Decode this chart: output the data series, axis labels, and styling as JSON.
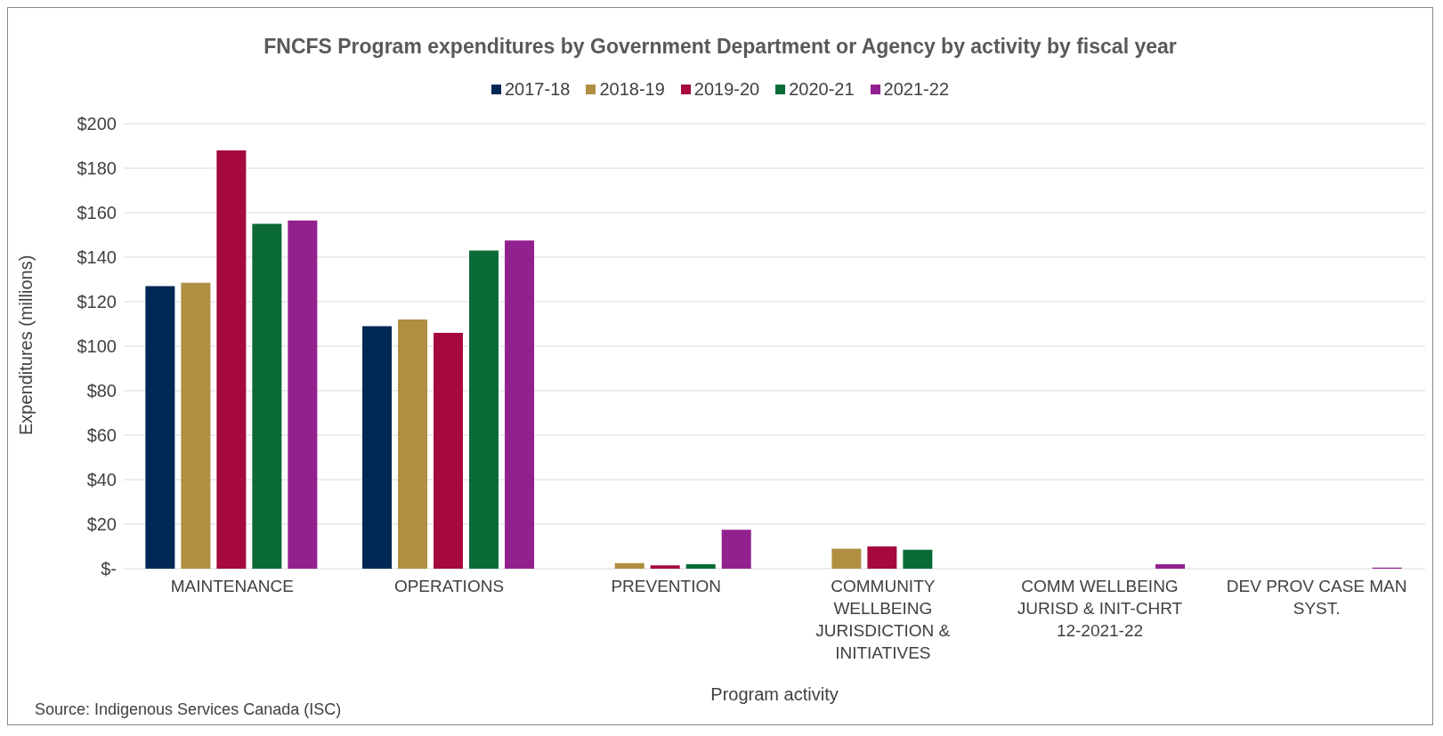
{
  "chart_data": {
    "type": "bar",
    "title": "FNCFS Program expenditures by Government Department or Agency by activity by fiscal year",
    "xlabel": "Program activity",
    "ylabel": "Expenditures (millions)",
    "categories": [
      "MAINTENANCE",
      "OPERATIONS",
      "PREVENTION",
      "COMMUNITY WELLBEING JURISDICTION & INITIATIVES",
      "COMM WELLBEING JURISD & INIT-CHRT 12-2021-22",
      "DEV PROV CASE MAN SYST."
    ],
    "series": [
      {
        "name": "2017-18",
        "color": "#002855",
        "values": [
          127,
          109,
          null,
          null,
          null,
          null
        ]
      },
      {
        "name": "2018-19",
        "color": "#b08f42",
        "values": [
          128.5,
          112,
          2.5,
          9,
          null,
          null
        ]
      },
      {
        "name": "2019-20",
        "color": "#a6093d",
        "values": [
          188,
          106,
          1.5,
          10,
          null,
          null
        ]
      },
      {
        "name": "2020-21",
        "color": "#0a6b38",
        "values": [
          155,
          143,
          2,
          8.5,
          null,
          null
        ]
      },
      {
        "name": "2021-22",
        "color": "#93208f",
        "values": [
          156.5,
          147.5,
          17.5,
          null,
          2,
          0.5
        ]
      }
    ],
    "ylim": [
      0,
      200
    ],
    "yticks": [
      {
        "value": 0,
        "label": "$-"
      },
      {
        "value": 20,
        "label": "$20"
      },
      {
        "value": 40,
        "label": "$40"
      },
      {
        "value": 60,
        "label": "$60"
      },
      {
        "value": 80,
        "label": "$80"
      },
      {
        "value": 100,
        "label": "$100"
      },
      {
        "value": 120,
        "label": "$120"
      },
      {
        "value": 140,
        "label": "$140"
      },
      {
        "value": 160,
        "label": "$160"
      },
      {
        "value": 180,
        "label": "$180"
      },
      {
        "value": 200,
        "label": "$200"
      }
    ],
    "grid": "y",
    "legend": "top",
    "annotations": [
      "Source: Indigenous Services Canada (ISC)"
    ]
  }
}
